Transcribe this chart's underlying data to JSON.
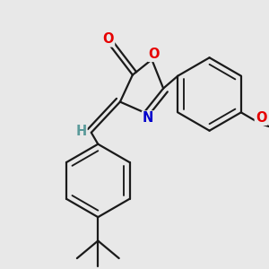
{
  "bg_color": "#e8e8e8",
  "bond_color": "#1a1a1a",
  "bond_width": 1.6,
  "atom_colors": {
    "O": "#e60000",
    "N": "#0000cc",
    "H": "#5a9a9a",
    "C": "#1a1a1a"
  },
  "font_size_atom": 10.5
}
